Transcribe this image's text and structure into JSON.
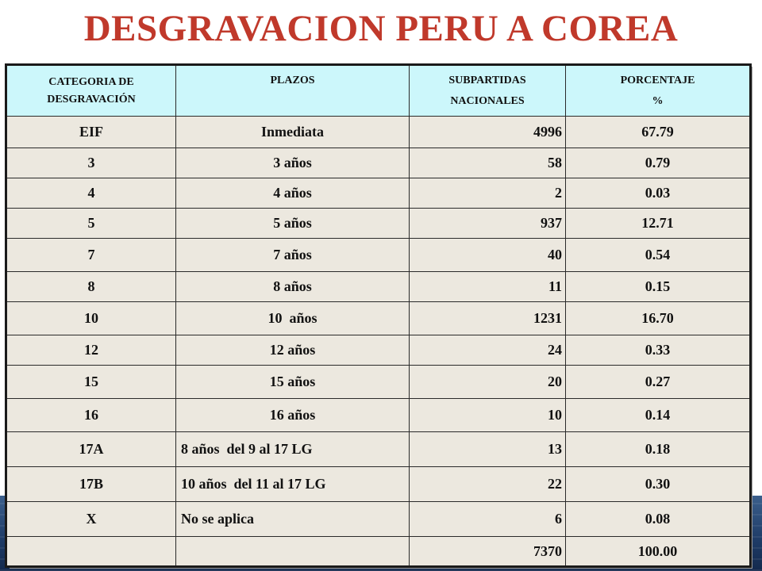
{
  "title": "DESGRAVACION PERU A COREA",
  "table": {
    "headers": {
      "categoria_line1": "CATEGORIA DE",
      "categoria_line2": "DESGRAVACIÓN",
      "plazos": "PLAZOS",
      "subpartidas_line1": "SUBPARTIDAS",
      "subpartidas_line2": "NACIONALES",
      "porcentaje_line1": "PORCENTAJE",
      "porcentaje_line2": "%"
    },
    "rows": [
      {
        "categoria": "EIF",
        "plazo": "Inmediata",
        "subpartidas": "4996",
        "porcentaje": "67.79"
      },
      {
        "categoria": "3",
        "plazo": "3 años",
        "subpartidas": "58",
        "porcentaje": "0.79"
      },
      {
        "categoria": "4",
        "plazo": "4 años",
        "subpartidas": "2",
        "porcentaje": "0.03"
      },
      {
        "categoria": "5",
        "plazo": "5 años",
        "subpartidas": "937",
        "porcentaje": "12.71"
      },
      {
        "categoria": "7",
        "plazo": "7 años",
        "subpartidas": "40",
        "porcentaje": "0.54"
      },
      {
        "categoria": "8",
        "plazo": "8 años",
        "subpartidas": "11",
        "porcentaje": "0.15"
      },
      {
        "categoria": "10",
        "plazo": "10  años",
        "subpartidas": "1231",
        "porcentaje": "16.70"
      },
      {
        "categoria": "12",
        "plazo": "12 años",
        "subpartidas": "24",
        "porcentaje": "0.33"
      },
      {
        "categoria": "15",
        "plazo": "15 años",
        "subpartidas": "20",
        "porcentaje": "0.27"
      },
      {
        "categoria": "16",
        "plazo": "16 años",
        "subpartidas": "10",
        "porcentaje": "0.14"
      },
      {
        "categoria": "17A",
        "plazo": "8 años  del 9 al 17 LG",
        "subpartidas": "13",
        "porcentaje": "0.18"
      },
      {
        "categoria": "17B",
        "plazo": "10 años  del 11 al 17 LG",
        "subpartidas": "22",
        "porcentaje": "0.30"
      },
      {
        "categoria": "X",
        "plazo": "No se aplica",
        "subpartidas": "6",
        "porcentaje": "0.08"
      }
    ],
    "total": {
      "categoria": "",
      "plazo": "",
      "subpartidas": "7370",
      "porcentaje": "100.00"
    }
  },
  "colors": {
    "title": "#c0392b",
    "header_bg": "#ccf7fb",
    "cell_bg": "#ece8df",
    "background_band": "#1e3b66"
  }
}
